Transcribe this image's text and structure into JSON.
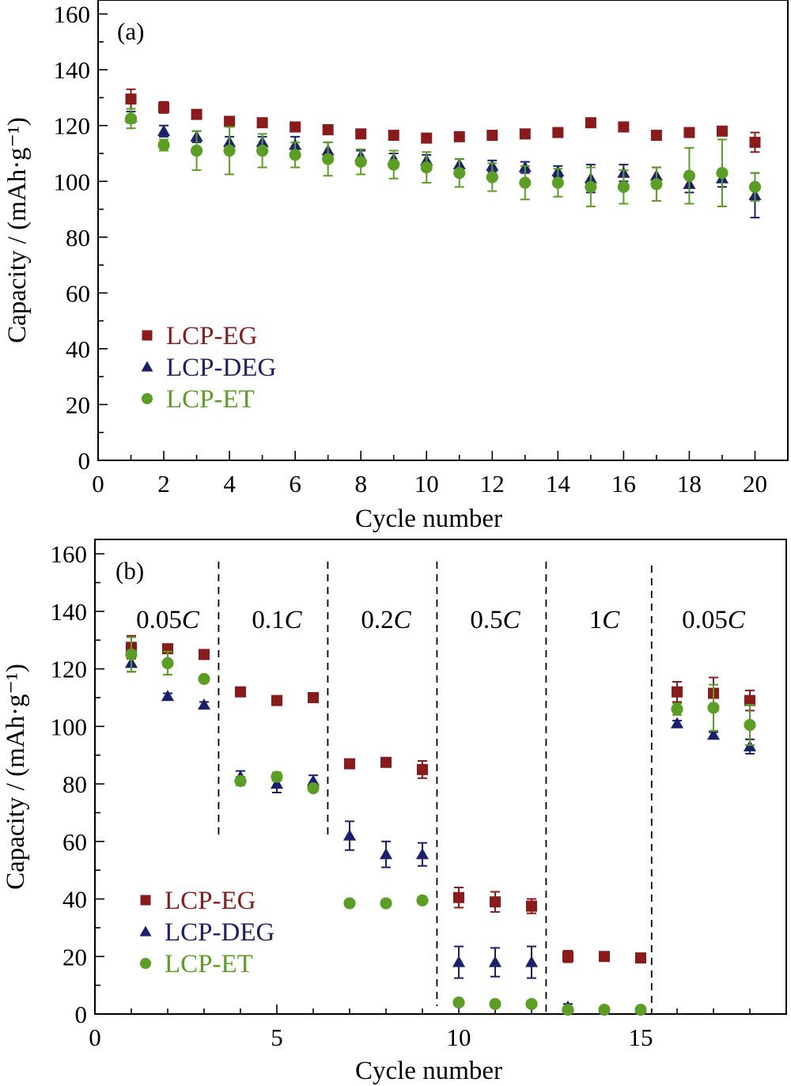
{
  "colors": {
    "EG": "#8B1A1A",
    "DEG": "#1A1F6E",
    "ET": "#5A9E23"
  },
  "chart_data": [
    {
      "panel": "(a)",
      "type": "scatter",
      "xlabel": "Cycle number",
      "ylabel": "Capacity / (mAh·g⁻¹)",
      "xlim": [
        0,
        21
      ],
      "ylim": [
        0,
        165
      ],
      "xticks": [
        0,
        2,
        4,
        6,
        8,
        10,
        12,
        14,
        16,
        18,
        20
      ],
      "yticks": [
        0,
        20,
        40,
        60,
        80,
        100,
        120,
        140,
        160
      ],
      "legend_position": "center-left",
      "series": [
        {
          "name": "LCP-EG",
          "marker": "square",
          "color_key": "EG",
          "x": [
            1,
            2,
            3,
            4,
            5,
            6,
            7,
            8,
            9,
            10,
            11,
            12,
            13,
            14,
            15,
            16,
            17,
            18,
            19,
            20
          ],
          "y": [
            129.5,
            126.5,
            124,
            121.5,
            121,
            119.5,
            118.5,
            117,
            116.5,
            115.5,
            116,
            116.5,
            117,
            117.5,
            121,
            119.5,
            116.5,
            117.5,
            118,
            114
          ],
          "err": [
            3.5,
            2,
            1.5,
            1,
            1,
            1,
            1,
            1,
            1,
            1,
            1,
            1,
            1,
            1,
            1,
            1,
            1,
            1,
            1,
            3.5
          ]
        },
        {
          "name": "LCP-DEG",
          "marker": "triangle",
          "color_key": "DEG",
          "x": [
            1,
            2,
            3,
            4,
            5,
            6,
            7,
            8,
            9,
            10,
            11,
            12,
            13,
            14,
            15,
            16,
            17,
            18,
            19,
            20
          ],
          "y": [
            123,
            118,
            116,
            114,
            114,
            113,
            111,
            109,
            108,
            107.5,
            106,
            105.5,
            105,
            103.5,
            101,
            103,
            102,
            99,
            101,
            95
          ],
          "err": [
            2,
            2,
            2,
            2,
            2,
            3,
            3,
            2,
            2,
            2,
            2,
            2,
            2,
            2,
            5,
            3,
            3,
            3,
            3,
            8
          ]
        },
        {
          "name": "LCP-ET",
          "marker": "circle",
          "color_key": "ET",
          "x": [
            1,
            2,
            3,
            4,
            5,
            6,
            7,
            8,
            9,
            10,
            11,
            12,
            13,
            14,
            15,
            16,
            17,
            18,
            19,
            20
          ],
          "y": [
            122.5,
            113,
            111,
            111,
            111,
            109.5,
            108,
            107,
            106,
            105,
            103,
            101.5,
            99.5,
            99.5,
            98,
            98,
            99,
            102,
            103,
            98
          ],
          "err": [
            3.5,
            2,
            7,
            8.5,
            6,
            4.5,
            6,
            4.5,
            5,
            5.5,
            5,
            5,
            6,
            5,
            7,
            6,
            6,
            10,
            12,
            5
          ]
        }
      ]
    },
    {
      "panel": "(b)",
      "type": "scatter",
      "xlabel": "Cycle number",
      "ylabel": "Capacity / (mAh·g⁻¹)",
      "xlim": [
        0,
        19
      ],
      "ylim": [
        0,
        165
      ],
      "xticks": [
        0,
        5,
        10,
        15
      ],
      "yticks": [
        0,
        20,
        40,
        60,
        80,
        100,
        120,
        140,
        160
      ],
      "legend_position": "center-left",
      "rate_regions": [
        {
          "label_num": "0.05",
          "label_unit": "C",
          "x_center": 2.0
        },
        {
          "label_num": "0.1",
          "label_unit": "C",
          "x_center": 5.0
        },
        {
          "label_num": "0.2",
          "label_unit": "C",
          "x_center": 8.0
        },
        {
          "label_num": "0.5",
          "label_unit": "C",
          "x_center": 11.0
        },
        {
          "label_num": "1",
          "label_unit": "C",
          "x_center": 14.0
        },
        {
          "label_num": "0.05",
          "label_unit": "C",
          "x_center": 17.0
        }
      ],
      "dividers_x": [
        3.4,
        6.4,
        9.4,
        12.4,
        15.3
      ],
      "series": [
        {
          "name": "LCP-EG",
          "marker": "square",
          "color_key": "EG",
          "x": [
            1,
            2,
            3,
            4,
            5,
            6,
            7,
            8,
            9,
            10,
            11,
            12,
            13,
            14,
            15,
            16,
            17,
            18
          ],
          "y": [
            127.5,
            127,
            125,
            112,
            109,
            110,
            87,
            87.5,
            85,
            40.5,
            39,
            37.5,
            20,
            20,
            19.5,
            112,
            111.5,
            109
          ],
          "err": [
            4,
            1,
            1,
            1,
            1,
            1,
            1.5,
            1,
            3,
            3.5,
            3.5,
            2.5,
            2,
            1,
            1,
            3.5,
            5.5,
            3.5
          ]
        },
        {
          "name": "LCP-DEG",
          "marker": "triangle",
          "color_key": "DEG",
          "x": [
            1,
            2,
            3,
            4,
            5,
            6,
            7,
            8,
            9,
            10,
            11,
            12,
            13,
            14,
            15,
            16,
            17,
            18
          ],
          "y": [
            122,
            110.5,
            107.5,
            82.5,
            80,
            81,
            62,
            55.5,
            55.5,
            18,
            18,
            18,
            2.5,
            1.5,
            1.5,
            101,
            97,
            93
          ],
          "err": [
            3,
            1,
            1,
            2,
            3,
            2,
            5,
            4.5,
            4,
            5.5,
            5,
            5.5,
            1,
            1,
            1,
            1,
            1,
            2.5
          ]
        },
        {
          "name": "LCP-ET",
          "marker": "circle",
          "color_key": "ET",
          "x": [
            1,
            2,
            3,
            4,
            5,
            6,
            7,
            8,
            9,
            10,
            11,
            12,
            13,
            14,
            15,
            16,
            17,
            18
          ],
          "y": [
            125,
            122,
            116.5,
            81,
            82.5,
            78.5,
            38.5,
            38.5,
            39.5,
            4,
            3.5,
            3.5,
            1.5,
            1.5,
            1.5,
            106,
            106.5,
            100.5
          ],
          "err": [
            6,
            4,
            1,
            1.5,
            1.5,
            1,
            1,
            1,
            1,
            1,
            1,
            1,
            1,
            1,
            1,
            2,
            8,
            7
          ]
        }
      ]
    }
  ],
  "legend": [
    {
      "label": "LCP-EG",
      "marker": "square",
      "color_key": "EG"
    },
    {
      "label": "LCP-DEG",
      "marker": "triangle",
      "color_key": "DEG"
    },
    {
      "label": "LCP-ET",
      "marker": "circle",
      "color_key": "ET"
    }
  ]
}
